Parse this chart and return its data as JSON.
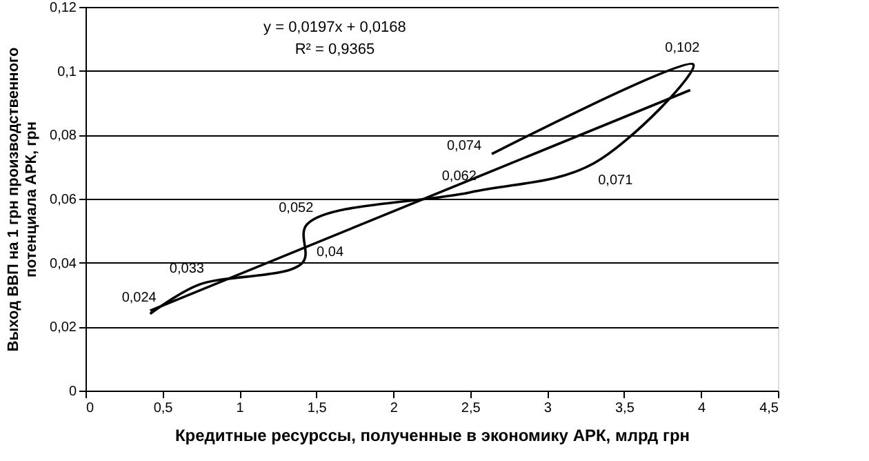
{
  "chart_data": {
    "type": "line",
    "xlabel": "Кредитные ресурссы, полученные в экономику АРК, млрд грн",
    "ylabel": "Выход ВВП на 1 грн производственного потенциала АРК, грн",
    "annotations": [
      "y = 0,0197x + 0,0168",
      "R² = 0,9365"
    ],
    "series": [
      {
        "color": "#000000",
        "x": [
          0.42,
          0.73,
          1.41,
          1.44,
          2.5,
          3.3,
          3.95,
          2.64
        ],
        "values": [
          0.024,
          0.033,
          0.04,
          0.052,
          0.062,
          0.071,
          0.102,
          0.074
        ],
        "value_labels": [
          "0,024",
          "0,033",
          "0,04",
          "0,052",
          "0,062",
          "0,071",
          "0,102",
          "0,074"
        ]
      },
      {
        "type": "line",
        "color": "#000000",
        "x": [
          0.42,
          3.93
        ],
        "values": [
          0.025,
          0.094
        ]
      }
    ],
    "xlim": [
      0,
      4.5
    ],
    "xticks": [
      0,
      {
        "value": 0.5,
        "label": "0,5"
      },
      1,
      {
        "value": 1.5,
        "label": "1,5"
      },
      2,
      {
        "value": 2.5,
        "label": "2,5"
      },
      3,
      {
        "value": 3.5,
        "label": "3,5"
      },
      4,
      {
        "value": 4.5,
        "label": "4,5"
      }
    ],
    "ylim": [
      0,
      0.12
    ],
    "yticks": [
      0,
      {
        "value": 0.02,
        "label": "0,02"
      },
      {
        "value": 0.04,
        "label": "0,04"
      },
      {
        "value": 0.06,
        "label": "0,06"
      },
      {
        "value": 0.08,
        "label": "0,08"
      },
      {
        "value": 0.1,
        "label": "0,1"
      },
      {
        "value": 0.12,
        "label": "0,12"
      }
    ],
    "grid": "y",
    "marker": "none",
    "line_style": "solid"
  }
}
